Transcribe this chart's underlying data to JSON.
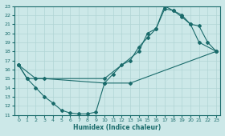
{
  "xlabel": "Humidex (Indice chaleur)",
  "bg_color": "#cce8e8",
  "grid_color": "#b0d4d4",
  "line_color": "#1a6b6b",
  "xlim": [
    -0.5,
    23.5
  ],
  "ylim": [
    11,
    23
  ],
  "xticks": [
    0,
    1,
    2,
    3,
    4,
    5,
    6,
    7,
    8,
    9,
    10,
    11,
    12,
    13,
    14,
    15,
    16,
    17,
    18,
    19,
    20,
    21,
    22,
    23
  ],
  "yticks": [
    11,
    12,
    13,
    14,
    15,
    16,
    17,
    18,
    19,
    20,
    21,
    22,
    23
  ],
  "line1_x": [
    0,
    1,
    2,
    3,
    4,
    5,
    6,
    7,
    8,
    9,
    10,
    13,
    23
  ],
  "line1_y": [
    16.5,
    15,
    14,
    13,
    12.3,
    11.5,
    11.2,
    11.1,
    11.1,
    11.3,
    14.5,
    14.5,
    18.0
  ],
  "line2_x": [
    0,
    2,
    3,
    10,
    11,
    12,
    13,
    14,
    15,
    16,
    17,
    18,
    19,
    20,
    21,
    23
  ],
  "line2_y": [
    16.5,
    15.0,
    15.0,
    14.5,
    15.5,
    16.5,
    17.0,
    18.5,
    19.5,
    20.5,
    23.0,
    22.5,
    21.8,
    21.0,
    19.0,
    18.0
  ],
  "line3_x": [
    0,
    1,
    10,
    14,
    15,
    16,
    17,
    18,
    19,
    20,
    21,
    22,
    23
  ],
  "line3_y": [
    16.5,
    15.0,
    15.0,
    18.0,
    20.0,
    20.5,
    22.7,
    22.5,
    22.0,
    21.0,
    20.8,
    19.0,
    18.0
  ]
}
